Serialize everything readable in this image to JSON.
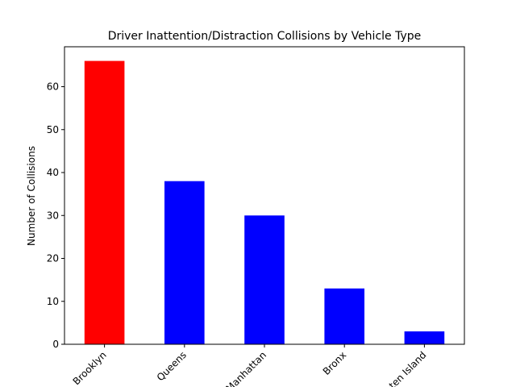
{
  "chart_data": {
    "type": "bar",
    "title": "Driver Inattention/Distraction Collisions by Vehicle Type",
    "xlabel": "",
    "ylabel": "Number of Collisions",
    "categories": [
      "Brooklyn",
      "Queens",
      "Manhattan",
      "Bronx",
      "Staten Island"
    ],
    "values": [
      66,
      38,
      30,
      13,
      3
    ],
    "bar_colors": [
      "#ff0000",
      "#0000ff",
      "#0000ff",
      "#0000ff",
      "#0000ff"
    ],
    "ylim": [
      0,
      69.3
    ],
    "yticks": [
      0,
      10,
      20,
      30,
      40,
      50,
      60
    ],
    "grid": false,
    "legend": "none"
  }
}
